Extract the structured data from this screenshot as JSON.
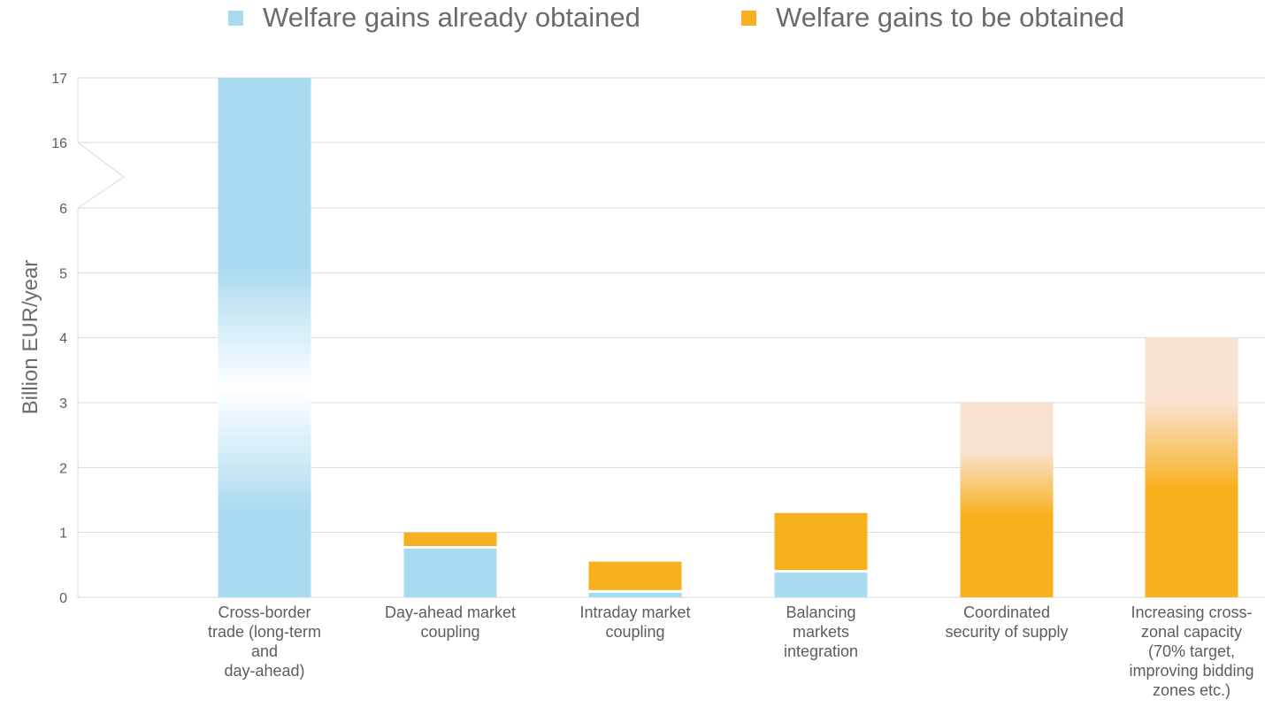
{
  "chart_data": {
    "type": "bar",
    "stacked": true,
    "title": "",
    "xlabel": "",
    "ylabel": "Billion EUR/year",
    "ylim": [
      0,
      17
    ],
    "axis_break": {
      "from": 6,
      "to": 16
    },
    "y_ticks": [
      "0",
      "1",
      "2",
      "3",
      "4",
      "5",
      "6",
      "16",
      "17"
    ],
    "grid": true,
    "legend_position": "top",
    "categories": [
      [
        "Cross-border",
        "trade (long-term",
        "and",
        "day-ahead)"
      ],
      [
        "Day-ahead market",
        "coupling"
      ],
      [
        "Intraday market",
        "coupling"
      ],
      [
        "Balancing",
        "markets",
        "integration"
      ],
      [
        "Coordinated",
        "security of supply"
      ],
      [
        "Increasing cross-",
        "zonal capacity",
        "(70% target,",
        "improving bidding",
        "zones etc.)"
      ]
    ],
    "series": [
      {
        "name": "Welfare gains already obtained",
        "color": "#a8daf0",
        "values": [
          17,
          0.75,
          0.07,
          0.38,
          0,
          0
        ]
      },
      {
        "name": "Welfare gains to be obtained",
        "color": "#f7b11e",
        "values": [
          0,
          0.25,
          0.48,
          0.92,
          3,
          4
        ]
      }
    ],
    "faded_tops": [
      true,
      false,
      false,
      false,
      true,
      true
    ]
  }
}
